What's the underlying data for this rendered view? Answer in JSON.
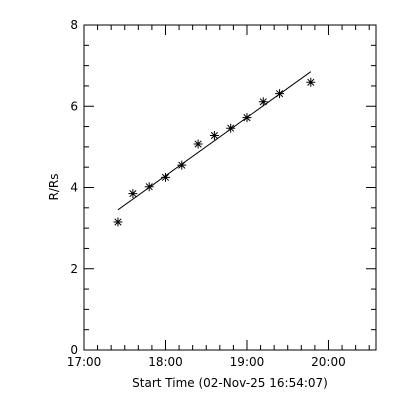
{
  "chart_data": {
    "type": "scatter",
    "xlabel": "Start Time (02-Nov-25 16:54:07)",
    "ylabel": "R/Rs",
    "x_tick_labels": [
      "17:00",
      "18:00",
      "19:00",
      "20:00"
    ],
    "x_tick_values_min": [
      0,
      60,
      120,
      180
    ],
    "x_range_min": [
      0,
      215
    ],
    "y_ticks": [
      0,
      2,
      4,
      6,
      8
    ],
    "ylim": [
      0,
      8
    ],
    "series": [
      {
        "marker": "asterisk",
        "points": [
          {
            "t": "17:25",
            "y": 3.15
          },
          {
            "t": "17:36",
            "y": 3.85
          },
          {
            "t": "17:48",
            "y": 4.02
          },
          {
            "t": "18:00",
            "y": 4.25
          },
          {
            "t": "18:12",
            "y": 4.55
          },
          {
            "t": "18:24",
            "y": 5.07
          },
          {
            "t": "18:36",
            "y": 5.28
          },
          {
            "t": "18:48",
            "y": 5.46
          },
          {
            "t": "19:00",
            "y": 5.72
          },
          {
            "t": "19:12",
            "y": 6.11
          },
          {
            "t": "19:24",
            "y": 6.31
          },
          {
            "t": "19:47",
            "y": 6.59
          }
        ]
      }
    ],
    "fit_line": [
      {
        "t": "17:25",
        "y": 3.45
      },
      {
        "t": "19:47",
        "y": 6.85
      }
    ],
    "grid": false,
    "legend": "none"
  }
}
